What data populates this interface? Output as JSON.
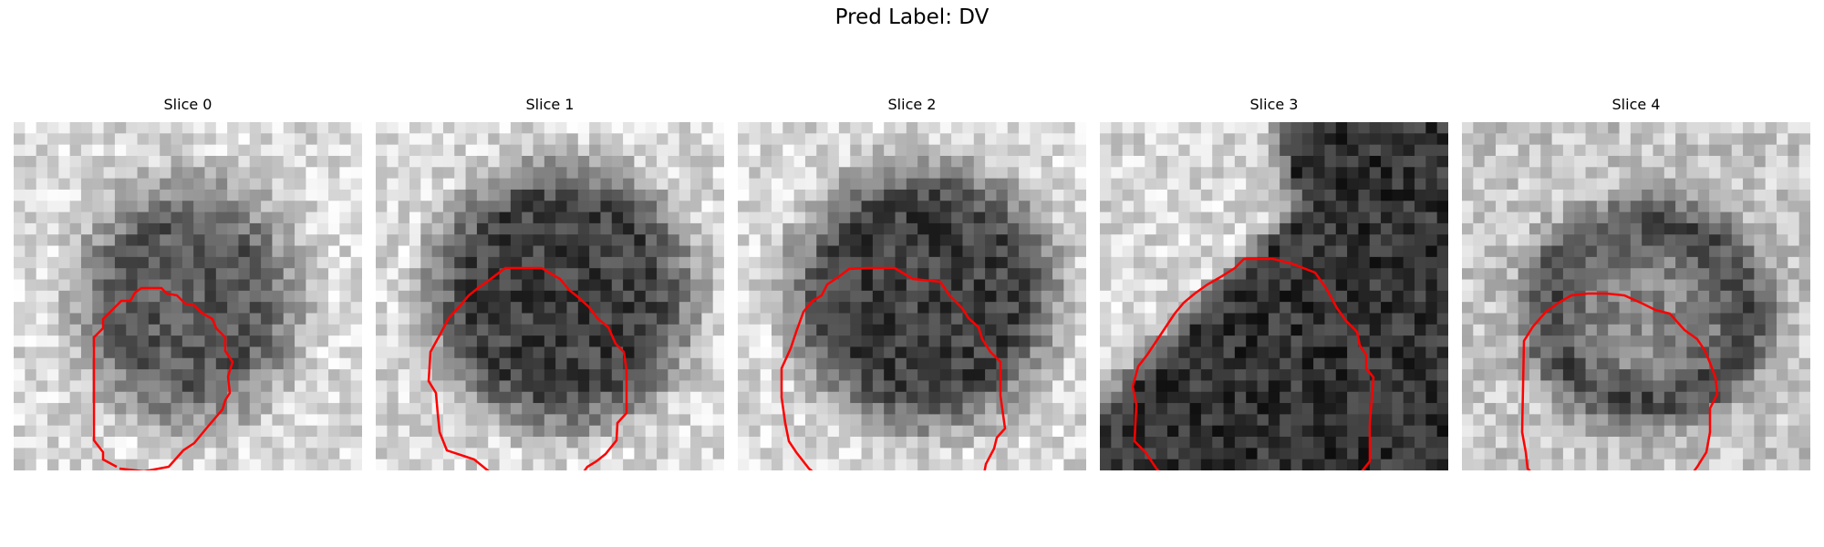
{
  "figure": {
    "title": "Pred Label: DV"
  },
  "overlay_color": "#ff0000",
  "panels": [
    {
      "title": "Slice 0",
      "blob": "round-dark-center"
    },
    {
      "title": "Slice 1",
      "blob": "round-dark-large"
    },
    {
      "title": "Slice 2",
      "blob": "round-dark-large"
    },
    {
      "title": "Slice 3",
      "blob": "triangular-dark-band"
    },
    {
      "title": "Slice 4",
      "blob": "round-ring-mid-gray"
    }
  ]
}
